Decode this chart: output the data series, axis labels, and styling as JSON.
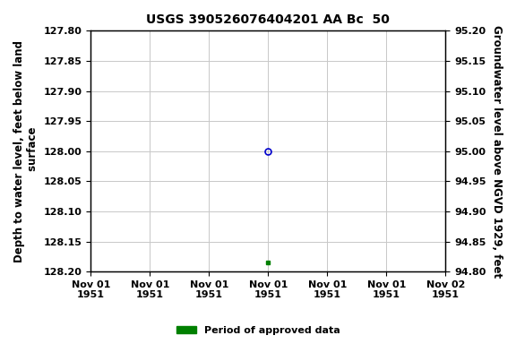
{
  "title": "USGS 390526076404201 AA Bc  50",
  "ylabel_left": "Depth to water level, feet below land\n surface",
  "ylabel_right": "Groundwater level above NGVD 1929, feet",
  "ylim_left": [
    127.8,
    128.2
  ],
  "ylim_right": [
    94.8,
    95.2
  ],
  "yticks_left": [
    127.8,
    127.85,
    127.9,
    127.95,
    128.0,
    128.05,
    128.1,
    128.15,
    128.2
  ],
  "yticks_right": [
    94.8,
    94.85,
    94.9,
    94.95,
    95.0,
    95.05,
    95.1,
    95.15,
    95.2
  ],
  "xlim": [
    0,
    6
  ],
  "xtick_positions": [
    0,
    1,
    2,
    3,
    4,
    5,
    6
  ],
  "xtick_labels": [
    "Nov 01\n1951",
    "Nov 01\n1951",
    "Nov 01\n1951",
    "Nov 01\n1951",
    "Nov 01\n1951",
    "Nov 01\n1951",
    "Nov 02\n1951"
  ],
  "data_point_x": 3,
  "data_point_y": 128.0,
  "data_point_color": "#0000cc",
  "data_point_marker": "o",
  "data_point_size": 5,
  "approved_point_x": 3,
  "approved_point_y": 128.185,
  "approved_point_color": "#008000",
  "approved_point_marker": "s",
  "approved_point_size": 3.5,
  "background_color": "#ffffff",
  "plot_bg_color": "#ffffff",
  "grid_color": "#c8c8c8",
  "legend_label": "Period of approved data",
  "legend_color": "#008000",
  "title_fontsize": 10,
  "axis_label_fontsize": 8.5,
  "tick_fontsize": 8
}
